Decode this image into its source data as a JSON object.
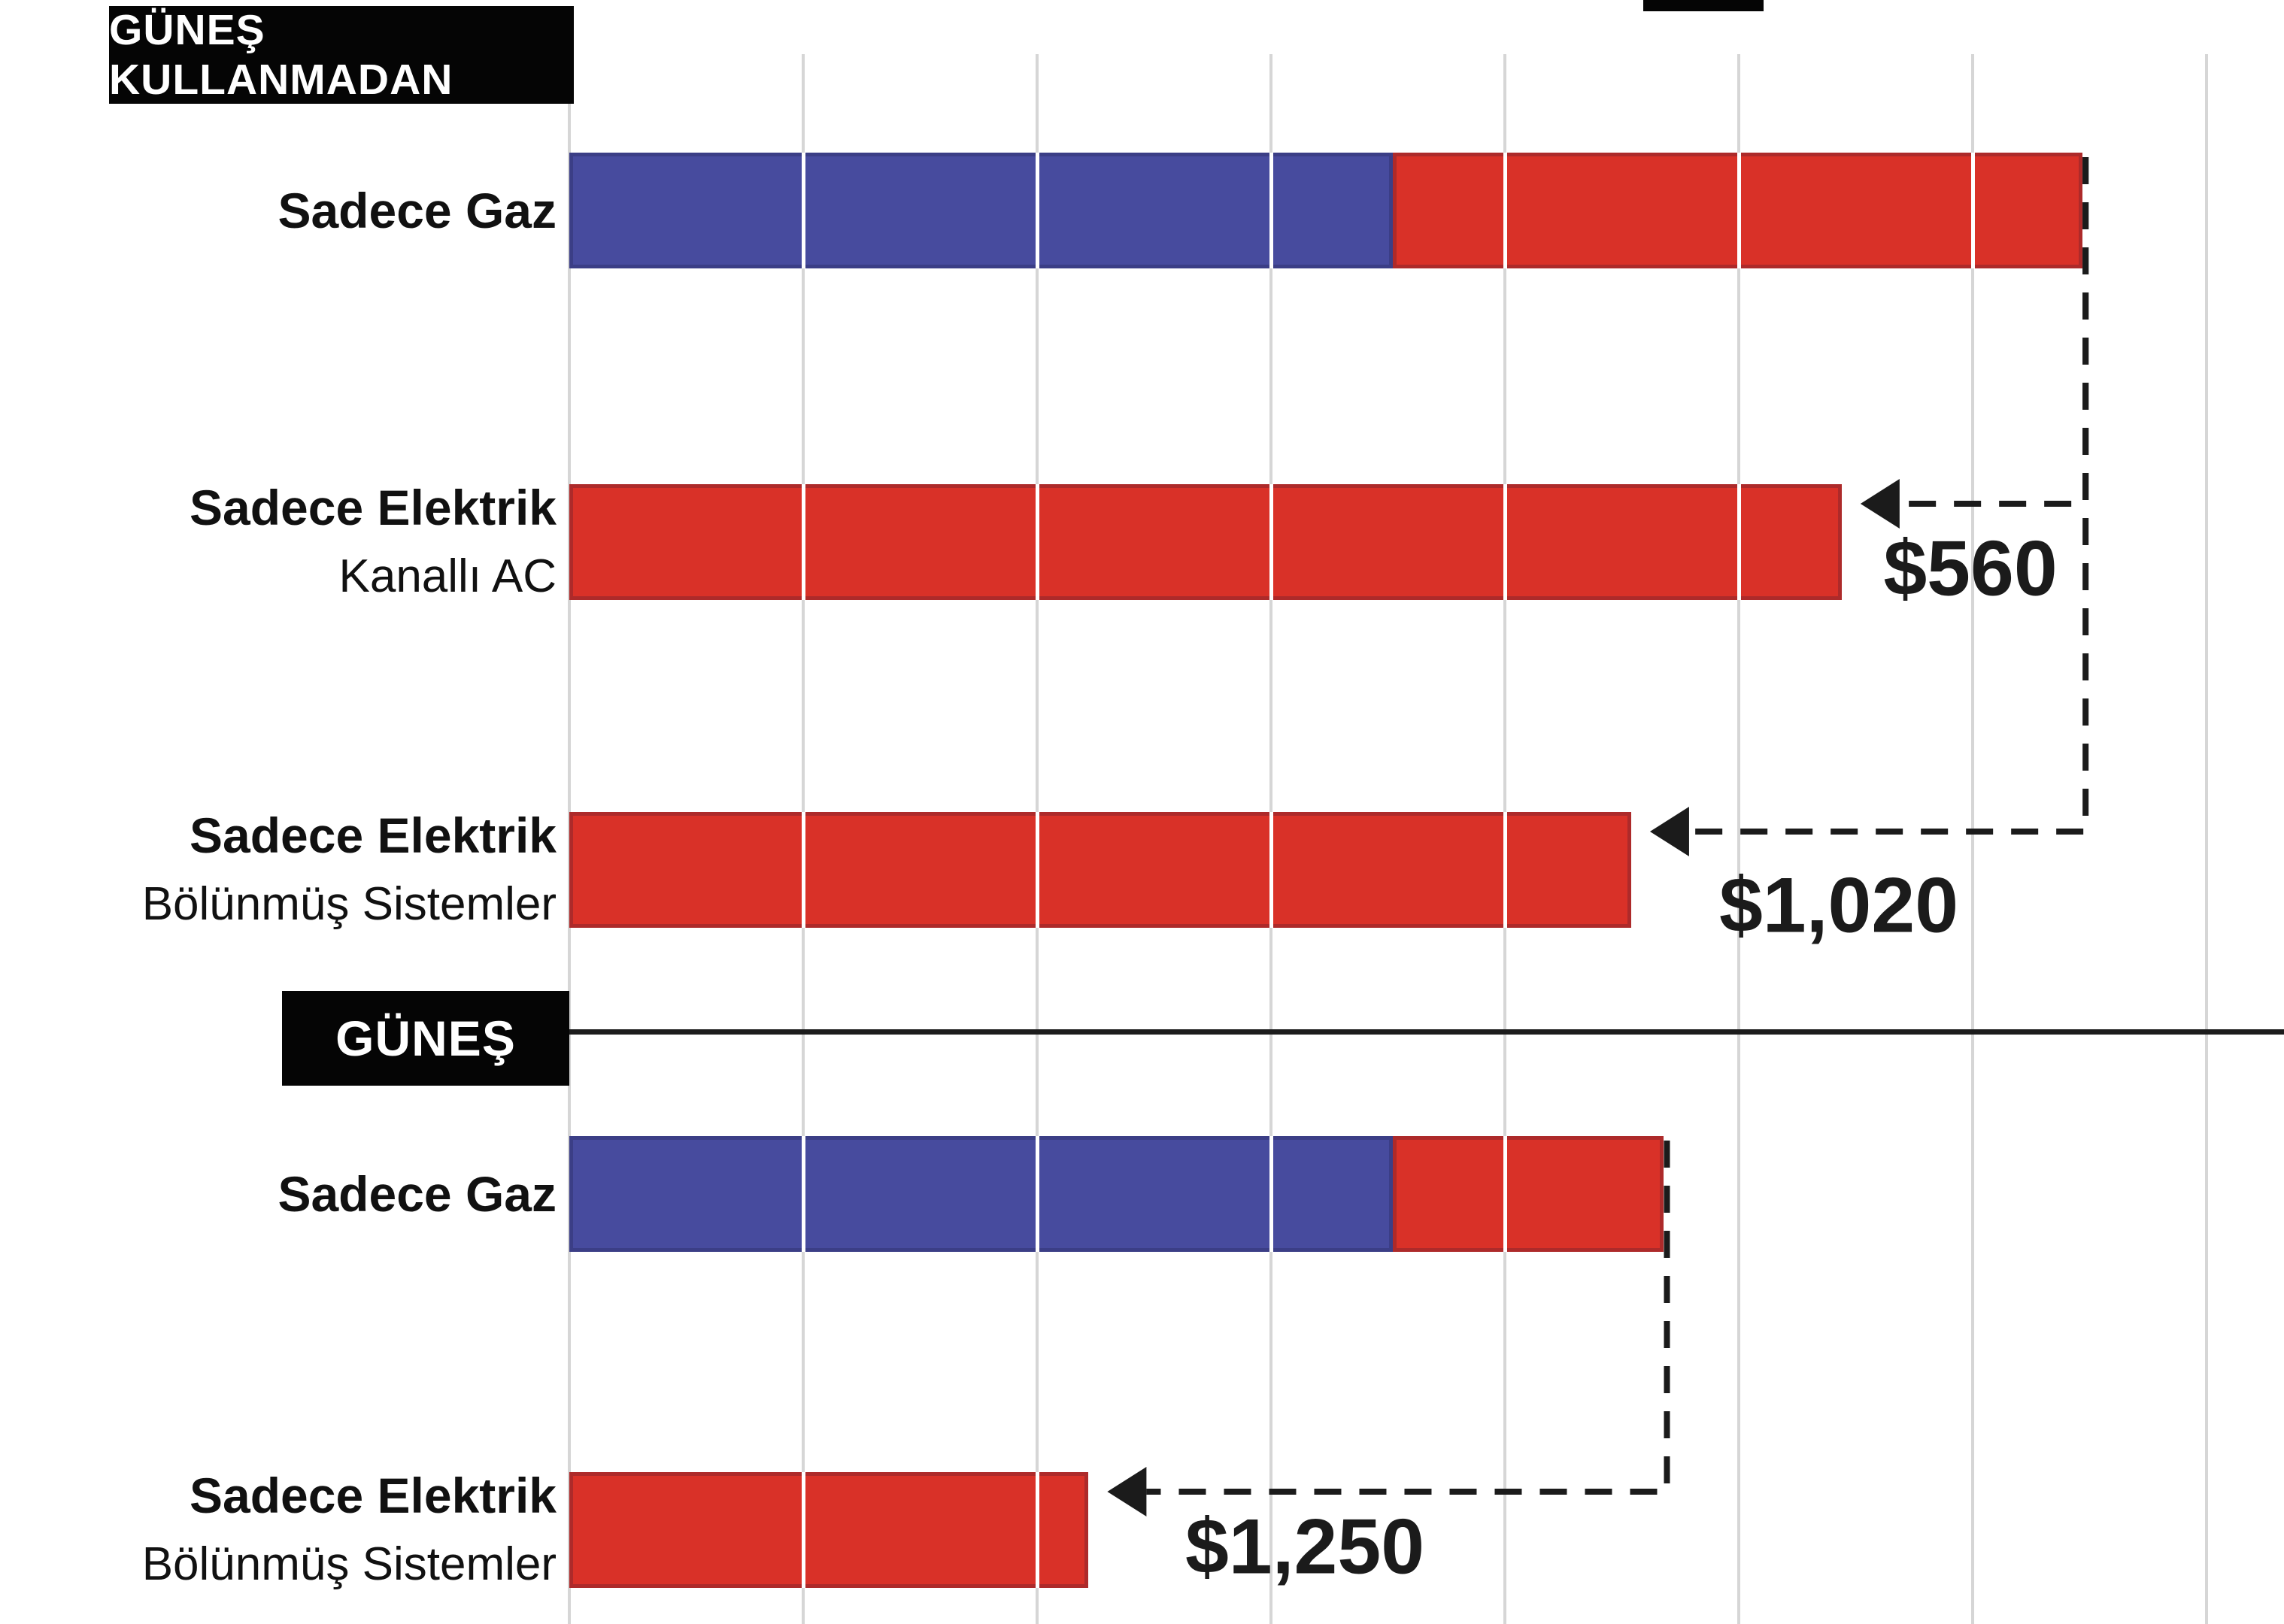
{
  "page": {
    "background": "#ffffff"
  },
  "chart_data": {
    "type": "bar",
    "orientation": "horizontal",
    "title": "",
    "xlabel": "",
    "ylabel": "",
    "grid": "vertical gridlines, no numeric axis labels visible",
    "gridline_count": 8,
    "value_unit": "gridline intervals (estimated from gridlines)",
    "colors": {
      "gas_blue": "#474B9E",
      "electric_red": "#D93128",
      "connector_black": "#1b1b1b",
      "gridline_gray": "#d6d6d6",
      "header_bg": "#050505",
      "header_text": "#ffffff"
    },
    "sections": [
      {
        "header": "GÜNEŞ KULLANMADAN",
        "rows": [
          {
            "label_lines": [
              "Sadece Gaz"
            ],
            "total_units": 6.47,
            "segments": [
              {
                "name": "gas",
                "color_key": "gas_blue",
                "length_units": 3.52
              },
              {
                "name": "electric",
                "color_key": "electric_red",
                "length_units": 2.95
              }
            ]
          },
          {
            "label_lines": [
              "Sadece Elektrik",
              "Kanallı AC"
            ],
            "total_units": 5.44,
            "segments": [
              {
                "name": "electric",
                "color_key": "electric_red",
                "length_units": 5.44
              }
            ]
          },
          {
            "label_lines": [
              "Sadece Elektrik",
              "Bölünmüş Sistemler"
            ],
            "total_units": 4.54,
            "segments": [
              {
                "name": "electric",
                "color_key": "electric_red",
                "length_units": 4.54
              }
            ]
          }
        ]
      },
      {
        "header": "GÜNEŞ",
        "rows": [
          {
            "label_lines": [
              "Sadece Gaz"
            ],
            "total_units": 4.68,
            "segments": [
              {
                "name": "gas",
                "color_key": "gas_blue",
                "length_units": 3.52
              },
              {
                "name": "electric",
                "color_key": "electric_red",
                "length_units": 1.16
              }
            ]
          },
          {
            "label_lines": [
              "Sadece Elektrik",
              "Bölünmüş Sistemler"
            ],
            "total_units": 2.22,
            "segments": [
              {
                "name": "electric",
                "color_key": "electric_red",
                "length_units": 2.22
              }
            ]
          }
        ]
      }
    ],
    "annotations": [
      {
        "text": "$560",
        "from_row": 0,
        "to_row": 1
      },
      {
        "text": "$1,020",
        "from_row": 0,
        "to_row": 2
      },
      {
        "text": "$1,250",
        "from_row": 3,
        "to_row": 4
      }
    ]
  }
}
